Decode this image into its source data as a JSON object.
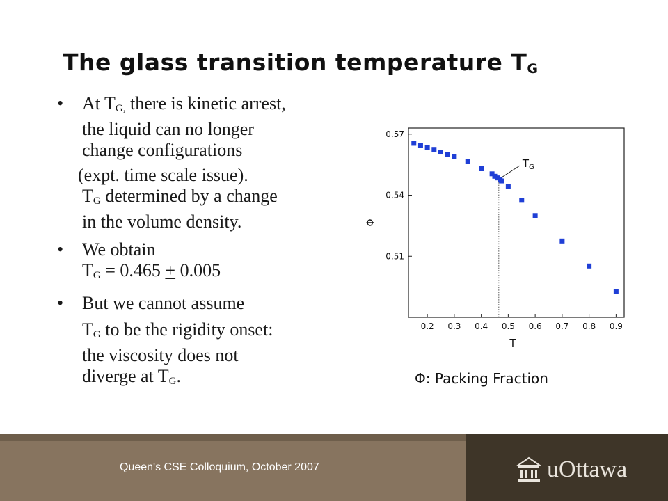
{
  "slide": {
    "title_main": "The glass transition temperature T",
    "title_sub": "G"
  },
  "bullets": {
    "b1": {
      "bullet": "•",
      "line1_a": "At T",
      "line1_sub": "G,",
      "line1_b": " there is kinetic arrest,",
      "line2": "the liquid can no longer",
      "line3": "change configurations",
      "line4": "(expt. time scale issue).",
      "line5_a": "T",
      "line5_sub": "G",
      "line5_b": " determined by a change",
      "line6": "in the volume density."
    },
    "b2": {
      "bullet": "•",
      "line1": "We obtain",
      "line2_a": "T",
      "line2_sub": "G",
      "line2_b": " = 0.465 ",
      "line2_pm": "+",
      "line2_c": " 0.005"
    },
    "b3": {
      "bullet": "•",
      "line1": "But we cannot assume",
      "line2_a": "T",
      "line2_sub": "G",
      "line2_b": " to be the rigidity onset:",
      "line3": "the viscosity does not",
      "line4_a": "diverge at T",
      "line4_sub": "G",
      "line4_b": "."
    }
  },
  "chart_data": {
    "type": "scatter",
    "xlabel": "T",
    "ylabel": "Φ",
    "xlim": [
      0.13,
      0.93
    ],
    "ylim": [
      0.48,
      0.573
    ],
    "x_ticks": [
      "0.2",
      "0.3",
      "0.4",
      "0.5",
      "0.6",
      "0.7",
      "0.8",
      "0.9"
    ],
    "y_ticks": [
      "0.51",
      "0.54",
      "0.57"
    ],
    "annotation": {
      "label_main": "T",
      "label_sub": "G",
      "x": 0.465
    },
    "marker_color": "#1f3fd6",
    "points": [
      {
        "x": 0.15,
        "y": 0.5655
      },
      {
        "x": 0.175,
        "y": 0.5645
      },
      {
        "x": 0.2,
        "y": 0.5635
      },
      {
        "x": 0.225,
        "y": 0.5625
      },
      {
        "x": 0.25,
        "y": 0.5612
      },
      {
        "x": 0.275,
        "y": 0.56
      },
      {
        "x": 0.3,
        "y": 0.559
      },
      {
        "x": 0.35,
        "y": 0.5565
      },
      {
        "x": 0.4,
        "y": 0.553
      },
      {
        "x": 0.44,
        "y": 0.5505
      },
      {
        "x": 0.45,
        "y": 0.5493
      },
      {
        "x": 0.46,
        "y": 0.5485
      },
      {
        "x": 0.47,
        "y": 0.5475
      },
      {
        "x": 0.475,
        "y": 0.547
      },
      {
        "x": 0.5,
        "y": 0.5443
      },
      {
        "x": 0.55,
        "y": 0.5375
      },
      {
        "x": 0.6,
        "y": 0.53
      },
      {
        "x": 0.7,
        "y": 0.5175
      },
      {
        "x": 0.8,
        "y": 0.5052
      },
      {
        "x": 0.9,
        "y": 0.4928
      }
    ]
  },
  "caption": "Φ: Packing Fraction",
  "footer": {
    "text": "Queen's CSE Colloquium, October 2007",
    "logo_text": "uOttawa",
    "logo_icon": "university-building-icon"
  }
}
